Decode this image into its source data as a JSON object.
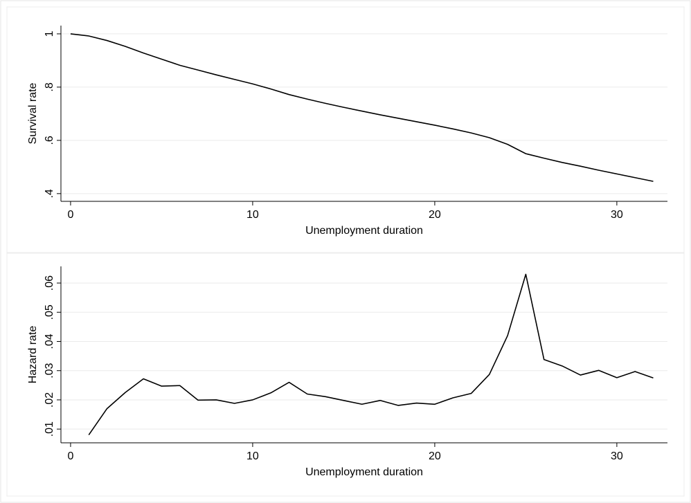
{
  "chart_data": [
    {
      "type": "line",
      "x_label": "Unemployment duration",
      "y_label": "Survival rate",
      "x": [
        0,
        1,
        2,
        3,
        4,
        5,
        6,
        7,
        8,
        9,
        10,
        11,
        12,
        13,
        14,
        15,
        16,
        17,
        18,
        19,
        20,
        21,
        22,
        23,
        24,
        25,
        26,
        27,
        28,
        29,
        30,
        31,
        32
      ],
      "series": [
        {
          "color": "#000000",
          "values": [
            1.0,
            0.992,
            0.975,
            0.953,
            0.928,
            0.905,
            0.882,
            0.864,
            0.846,
            0.829,
            0.812,
            0.793,
            0.772,
            0.755,
            0.739,
            0.724,
            0.71,
            0.696,
            0.683,
            0.67,
            0.657,
            0.643,
            0.628,
            0.61,
            0.585,
            0.55,
            0.533,
            0.517,
            0.503,
            0.488,
            0.474,
            0.46,
            0.446
          ]
        }
      ],
      "xlim": [
        -0.53,
        32.78
      ],
      "xticks": [
        0,
        10,
        20,
        30
      ],
      "ylim": [
        0.371,
        1.031
      ],
      "yticks": [
        {
          "value": 0.4,
          "label": ".4"
        },
        {
          "value": 0.6,
          "label": ".6"
        },
        {
          "value": 0.8,
          "label": ".8"
        },
        1
      ],
      "grid": true
    },
    {
      "type": "line",
      "x_label": "Unemployment duration",
      "y_label": "Hazard rate",
      "x": [
        1,
        2,
        3,
        4,
        5,
        6,
        7,
        8,
        9,
        10,
        11,
        12,
        13,
        14,
        15,
        16,
        17,
        18,
        19,
        20,
        21,
        22,
        23,
        24,
        25,
        26,
        27,
        28,
        29,
        30,
        31,
        32
      ],
      "series": [
        {
          "color": "#000000",
          "values": [
            0.008,
            0.017,
            0.0225,
            0.0272,
            0.0247,
            0.0249,
            0.0199,
            0.02,
            0.0188,
            0.02,
            0.0224,
            0.026,
            0.022,
            0.0211,
            0.0198,
            0.0185,
            0.0198,
            0.0181,
            0.0189,
            0.0185,
            0.0207,
            0.0222,
            0.0287,
            0.042,
            0.063,
            0.0338,
            0.0316,
            0.0285,
            0.0301,
            0.0276,
            0.0297,
            0.0275
          ]
        }
      ],
      "xlim": [
        -0.53,
        32.78
      ],
      "xticks": [
        0,
        10,
        20,
        30
      ],
      "ylim": [
        0.0053,
        0.0657
      ],
      "yticks": [
        {
          "value": 0.01,
          "label": ".01"
        },
        {
          "value": 0.02,
          "label": ".02"
        },
        {
          "value": 0.03,
          "label": ".03"
        },
        {
          "value": 0.04,
          "label": ".04"
        },
        {
          "value": 0.05,
          "label": ".05"
        },
        {
          "value": 0.06,
          "label": ".06"
        }
      ],
      "grid": true
    }
  ]
}
